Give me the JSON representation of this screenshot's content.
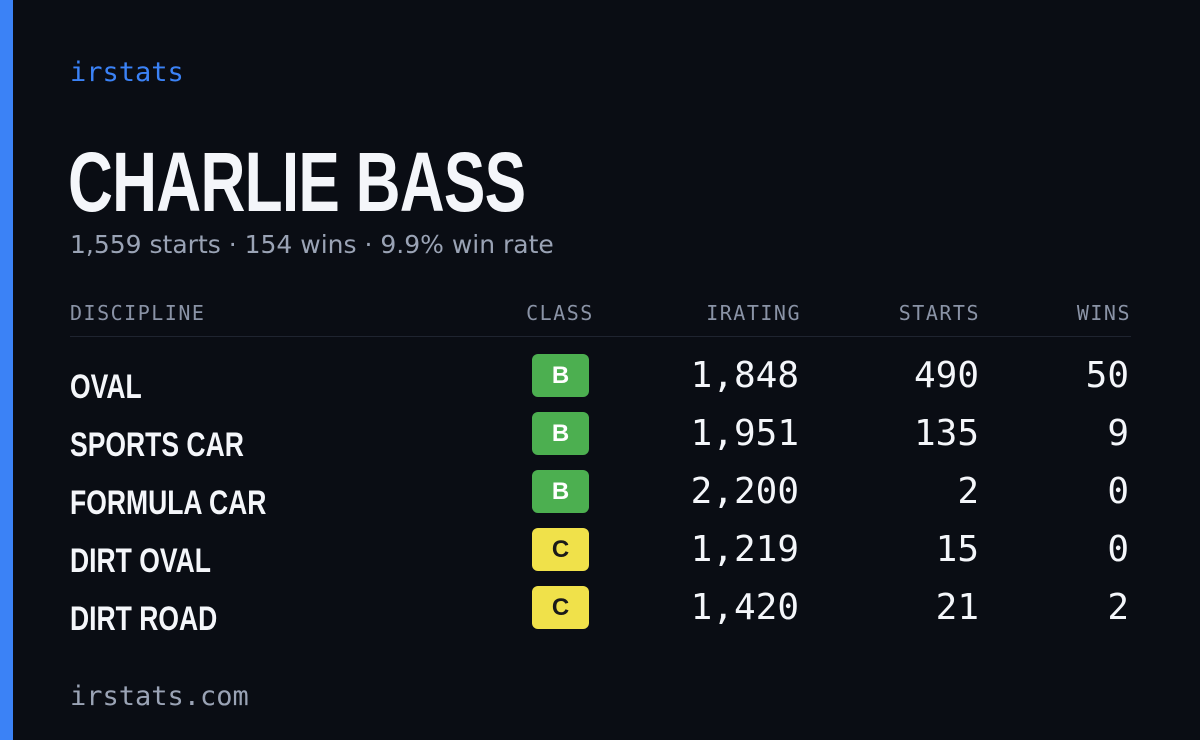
{
  "brand": "irstats",
  "driver": {
    "name": "CHARLIE BASS",
    "summary": "1,559 starts · 154 wins · 9.9% win rate"
  },
  "table": {
    "headers": {
      "discipline": "DISCIPLINE",
      "class": "CLASS",
      "irating": "IRATING",
      "starts": "STARTS",
      "wins": "WINS"
    },
    "rows": [
      {
        "discipline": "OVAL",
        "class": "B",
        "class_color": "#4caf50",
        "class_text_color": "#ffffff",
        "irating": "1,848",
        "starts": "490",
        "wins": "50"
      },
      {
        "discipline": "SPORTS CAR",
        "class": "B",
        "class_color": "#4caf50",
        "class_text_color": "#ffffff",
        "irating": "1,951",
        "starts": "135",
        "wins": "9"
      },
      {
        "discipline": "FORMULA CAR",
        "class": "B",
        "class_color": "#4caf50",
        "class_text_color": "#ffffff",
        "irating": "2,200",
        "starts": "2",
        "wins": "0"
      },
      {
        "discipline": "DIRT OVAL",
        "class": "C",
        "class_color": "#f0e14a",
        "class_text_color": "#1a1a1a",
        "irating": "1,219",
        "starts": "15",
        "wins": "0"
      },
      {
        "discipline": "DIRT ROAD",
        "class": "C",
        "class_color": "#f0e14a",
        "class_text_color": "#1a1a1a",
        "irating": "1,420",
        "starts": "21",
        "wins": "2"
      }
    ]
  },
  "footer": "irstats.com",
  "colors": {
    "accent": "#3b82f6",
    "background": "#0a0d14",
    "class_b": "#4caf50",
    "class_c": "#f0e14a"
  }
}
